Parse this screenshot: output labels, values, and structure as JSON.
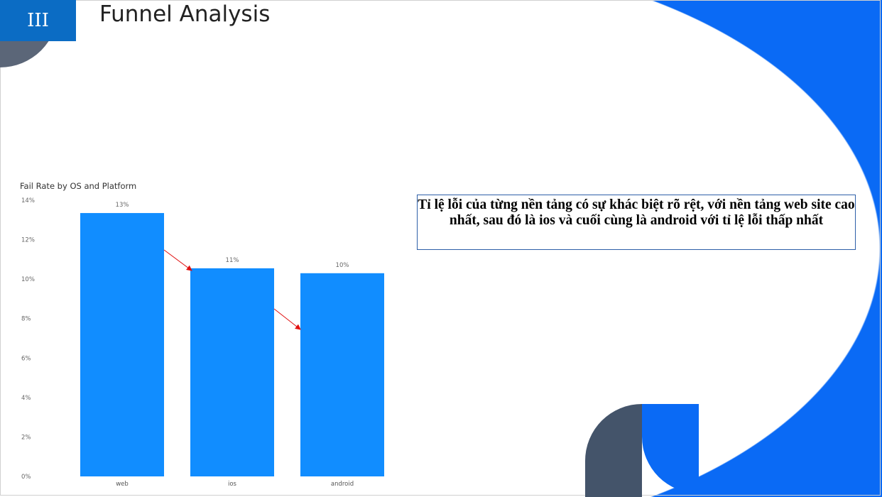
{
  "slide": {
    "section_number": "III",
    "title": "Funnel Analysis",
    "note": "Tỉ lệ lỗi của từng nền tảng có sự khác biệt rõ rệt, với nền tảng web site cao nhất, sau đó là ios và cuối cùng là android với tỉ lệ lỗi thấp nhất"
  },
  "colors": {
    "bar": "#118dff",
    "accent": "#0a6af5",
    "arrow": "#e01010"
  },
  "chart_data": {
    "type": "bar",
    "title": "Fail Rate by OS and Platform",
    "categories": [
      "web",
      "ios",
      "android"
    ],
    "values": [
      13.35,
      10.55,
      10.3
    ],
    "data_labels": [
      "13%",
      "11%",
      "10%"
    ],
    "yticks": [
      "0%",
      "2%",
      "4%",
      "6%",
      "8%",
      "10%",
      "12%",
      "14%"
    ],
    "ylim": [
      0,
      14
    ],
    "grid": false
  }
}
